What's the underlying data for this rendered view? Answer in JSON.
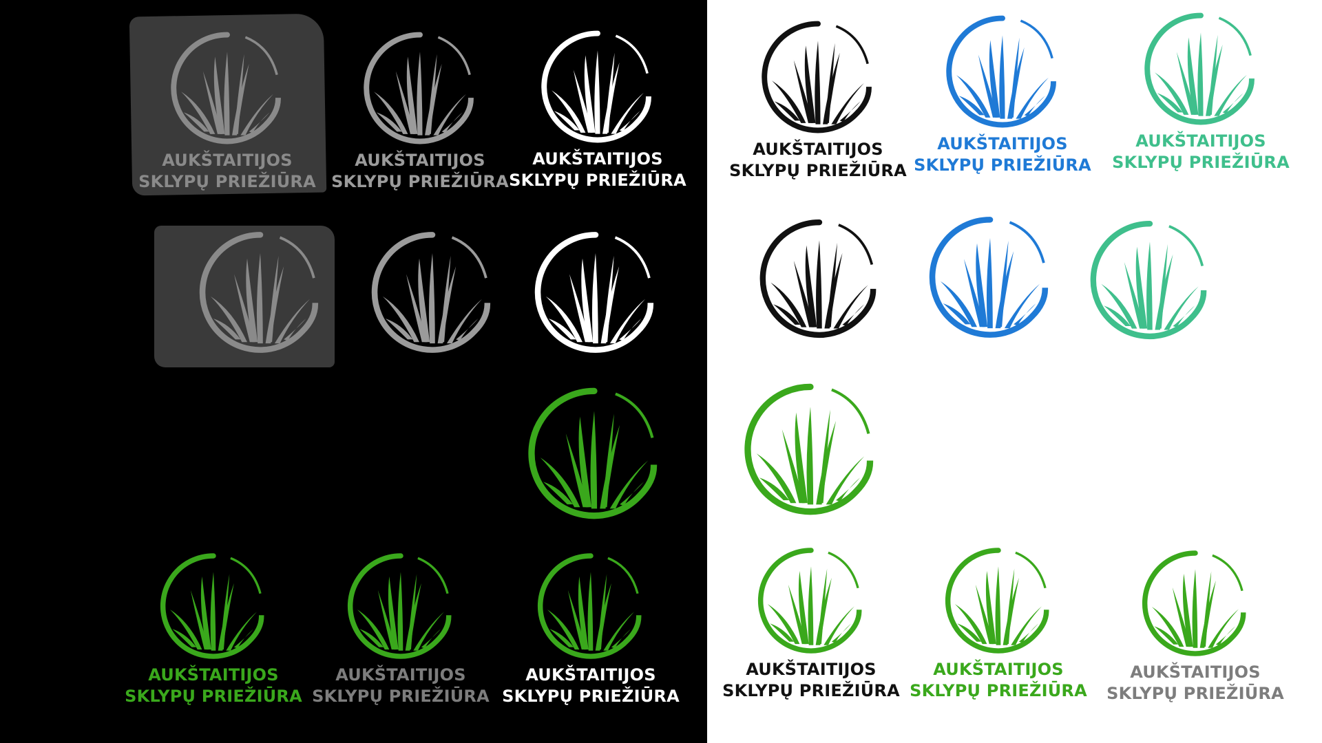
{
  "brand": {
    "line1": "AUKŠTAITIJOS",
    "line2": "SKLYPŲ PRIEŽIŪRA"
  },
  "colors": {
    "dark_background": "#000000",
    "light_background": "#ffffff",
    "stamp_grey": "#3a3a3a",
    "mid_grey": "#8a8a8a",
    "light_grey": "#9b9b9b",
    "white": "#ffffff",
    "black": "#111111",
    "blue": "#1f7ad6",
    "teal": "#3fbf8c",
    "green_dark": "#2e9e1a",
    "green_light": "#7ad12a",
    "text_green": "#3aa81c",
    "text_grey": "#7d7d7d"
  },
  "logos": [
    {
      "id": "dark-stamp-full",
      "variant": "grey-stamp",
      "text": "grey"
    },
    {
      "id": "dark-grey-full",
      "variant": "grey",
      "text": "grey"
    },
    {
      "id": "dark-white-full",
      "variant": "white",
      "text": "white"
    },
    {
      "id": "dark-stamp-icon",
      "variant": "grey-stamp"
    },
    {
      "id": "dark-grey-icon",
      "variant": "grey"
    },
    {
      "id": "dark-white-icon",
      "variant": "white"
    },
    {
      "id": "dark-green-icon",
      "variant": "green"
    },
    {
      "id": "dark-green-text-green",
      "variant": "green",
      "text": "green"
    },
    {
      "id": "dark-green-text-grey",
      "variant": "green",
      "text": "grey"
    },
    {
      "id": "dark-green-text-white",
      "variant": "green",
      "text": "white"
    },
    {
      "id": "light-black-full",
      "variant": "black",
      "text": "black"
    },
    {
      "id": "light-blue-full",
      "variant": "blue",
      "text": "blue"
    },
    {
      "id": "light-teal-full",
      "variant": "teal",
      "text": "teal"
    },
    {
      "id": "light-black-icon",
      "variant": "black"
    },
    {
      "id": "light-blue-icon",
      "variant": "blue"
    },
    {
      "id": "light-teal-icon",
      "variant": "teal"
    },
    {
      "id": "light-green-icon",
      "variant": "green"
    },
    {
      "id": "light-green-text-black",
      "variant": "green",
      "text": "black"
    },
    {
      "id": "light-green-text-green",
      "variant": "green",
      "text": "green"
    },
    {
      "id": "light-green-text-grey",
      "variant": "green",
      "text": "grey"
    }
  ]
}
